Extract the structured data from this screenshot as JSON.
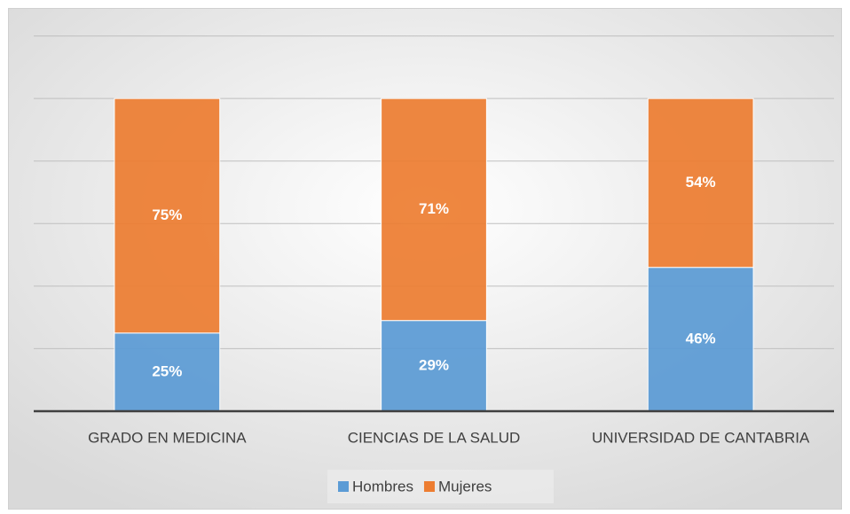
{
  "chart_data": {
    "type": "stacked_bar",
    "categories": [
      "GRADO EN MEDICINA",
      "CIENCIAS DE LA SALUD",
      "UNIVERSIDAD DE CANTABRIA"
    ],
    "series": [
      {
        "name": "Hombres",
        "color": "#5b9bd5",
        "values": [
          25,
          29,
          46
        ],
        "value_labels": [
          "25%",
          "29%",
          "46%"
        ]
      },
      {
        "name": "Mujeres",
        "color": "#ed7d31",
        "values": [
          75,
          71,
          54
        ],
        "value_labels": [
          "75%",
          "71%",
          "54%"
        ]
      }
    ],
    "ylim": [
      0,
      120
    ],
    "yticks": [
      0,
      20,
      40,
      60,
      80,
      100,
      120
    ],
    "grid": true,
    "legend": "bottom"
  }
}
